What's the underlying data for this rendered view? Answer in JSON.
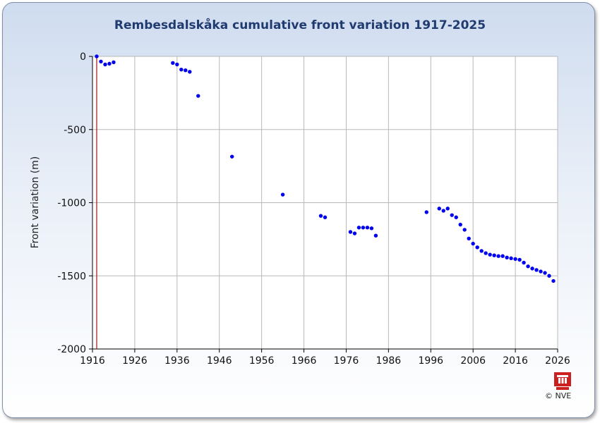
{
  "colors": {
    "point": "#0000ee",
    "marker_line": "#aa1111",
    "grid": "#b8b8b8",
    "title": "#203b70"
  },
  "chart_data": {
    "type": "scatter",
    "title": "Rembesdalskåka cumulative front variation 1917-2025",
    "xlabel": "",
    "ylabel": "Front variation (m)",
    "xlim": [
      1916,
      2026
    ],
    "ylim": [
      -2000,
      0
    ],
    "x_ticks": [
      1916,
      1926,
      1936,
      1946,
      1956,
      1966,
      1976,
      1986,
      1996,
      2006,
      2016,
      2026
    ],
    "y_ticks": [
      0,
      -500,
      -1000,
      -1500,
      -2000
    ],
    "grid": true,
    "start_marker_year": 1917,
    "series": [
      {
        "x": [
          1917,
          1918,
          1919,
          1920,
          1921,
          1935,
          1936,
          1937,
          1938,
          1939,
          1941,
          1949,
          1961,
          1970,
          1971,
          1977,
          1978,
          1979,
          1980,
          1981,
          1982,
          1983,
          1995,
          1998,
          1999,
          2000,
          2001,
          2002,
          2003,
          2004,
          2005,
          2006,
          2007,
          2008,
          2009,
          2010,
          2011,
          2012,
          2013,
          2014,
          2015,
          2016,
          2017,
          2018,
          2019,
          2020,
          2021,
          2022,
          2023,
          2024,
          2025
        ],
        "y": [
          0,
          -35,
          -55,
          -50,
          -40,
          -45,
          -55,
          -90,
          -95,
          -105,
          -270,
          -685,
          -945,
          -1090,
          -1100,
          -1200,
          -1210,
          -1170,
          -1170,
          -1170,
          -1175,
          -1225,
          -1065,
          -1040,
          -1055,
          -1040,
          -1085,
          -1100,
          -1150,
          -1185,
          -1245,
          -1280,
          -1305,
          -1330,
          -1345,
          -1355,
          -1360,
          -1365,
          -1365,
          -1375,
          -1380,
          -1385,
          -1390,
          -1410,
          -1435,
          -1450,
          -1460,
          -1470,
          -1480,
          -1500,
          -1535
        ]
      }
    ]
  },
  "footer": {
    "copyright": "© NVE"
  }
}
